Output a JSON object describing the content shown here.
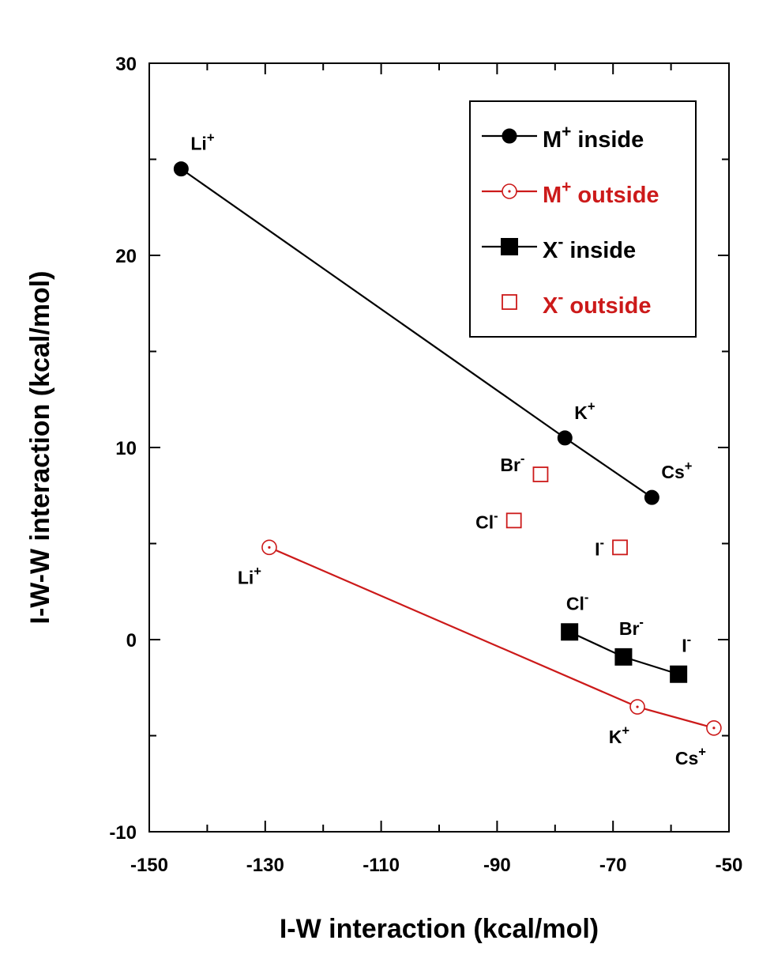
{
  "chart_data": {
    "type": "scatter",
    "xlabel": "I-W interaction (kcal/mol)",
    "ylabel": "I-W-W interaction (kcal/mol)",
    "xlim": [
      -150,
      -50
    ],
    "ylim": [
      -10,
      30
    ],
    "x_ticks": [
      -150,
      -130,
      -110,
      -90,
      -70,
      -50
    ],
    "y_ticks": [
      -10,
      0,
      10,
      20,
      30
    ],
    "x_minor_step": 10,
    "y_minor_step": 5,
    "grid": false,
    "legend_position": "top-right",
    "colors": {
      "black": "#000000",
      "red": "#cc1a1a"
    },
    "series": [
      {
        "name": "M+ inside",
        "legend_main": "M",
        "legend_sup": "+",
        "legend_rest": " inside",
        "color": "#000000",
        "marker": "filled-circle",
        "line": true,
        "points": [
          {
            "x": -144.5,
            "y": 24.5,
            "label": "Li",
            "sup": "+",
            "anchor": "above-right"
          },
          {
            "x": -78.3,
            "y": 10.5,
            "label": "K",
            "sup": "+",
            "anchor": "above-right"
          },
          {
            "x": -63.3,
            "y": 7.4,
            "label": "Cs",
            "sup": "+",
            "anchor": "above-right"
          }
        ]
      },
      {
        "name": "M+ outside",
        "legend_main": "M",
        "legend_sup": "+",
        "legend_rest": " outside",
        "color": "#cc1a1a",
        "marker": "open-circle",
        "line": true,
        "points": [
          {
            "x": -129.3,
            "y": 4.8,
            "label": "Li",
            "sup": "+",
            "anchor": "below-left"
          },
          {
            "x": -65.8,
            "y": -3.5,
            "label": "K",
            "sup": "+",
            "anchor": "below-left"
          },
          {
            "x": -52.6,
            "y": -4.6,
            "label": "Cs",
            "sup": "+",
            "anchor": "below-left"
          }
        ]
      },
      {
        "name": "X- inside",
        "legend_main": "X",
        "legend_sup": "-",
        "legend_rest": " inside",
        "color": "#000000",
        "marker": "filled-square",
        "line": true,
        "points": [
          {
            "x": -77.5,
            "y": 0.4,
            "label": "Cl",
            "sup": "-",
            "anchor": "above"
          },
          {
            "x": -68.2,
            "y": -0.9,
            "label": "Br",
            "sup": "-",
            "anchor": "above"
          },
          {
            "x": -58.7,
            "y": -1.8,
            "label": "I",
            "sup": "-",
            "anchor": "above"
          }
        ]
      },
      {
        "name": "X- outside",
        "legend_main": "X",
        "legend_sup": "-",
        "legend_rest": " outside",
        "color": "#cc1a1a",
        "marker": "open-square",
        "line": false,
        "points": [
          {
            "x": -87.1,
            "y": 6.2,
            "label": "Cl",
            "sup": "-",
            "anchor": "left"
          },
          {
            "x": -82.5,
            "y": 8.6,
            "label": "Br",
            "sup": "-",
            "anchor": "left-up"
          },
          {
            "x": -68.8,
            "y": 4.8,
            "label": "I",
            "sup": "-",
            "anchor": "left"
          }
        ]
      }
    ]
  }
}
